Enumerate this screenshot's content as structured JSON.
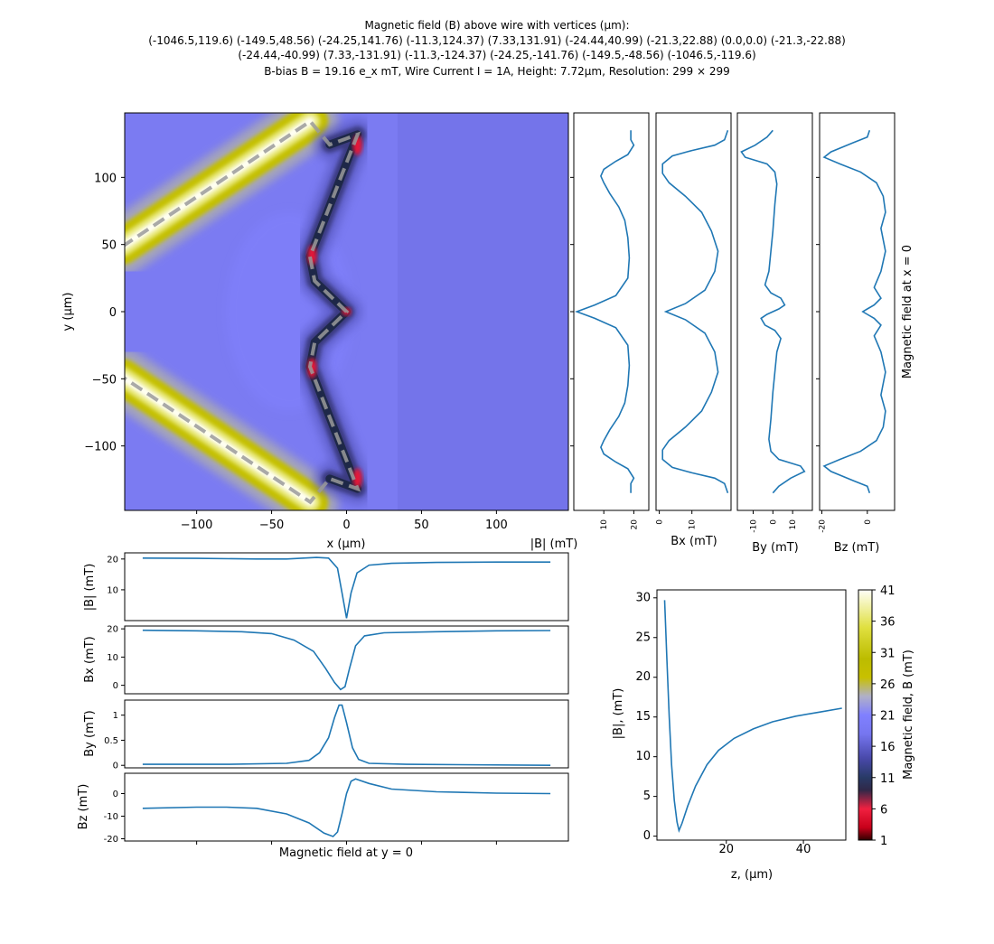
{
  "title": {
    "line1": "Magnetic field (B) above wire with vertices (μm):",
    "line2": "(-1046.5,119.6) (-149.5,48.56) (-24.25,141.76) (-11.3,124.37) (7.33,131.91) (-24.44,40.99) (-21.3,22.88) (0.0,0.0) (-21.3,-22.88)",
    "line3": "(-24.44,-40.99) (7.33,-131.91) (-11.3,-124.37) (-24.25,-141.76) (-149.5,-48.56) (-1046.5,-119.6)",
    "line4": "B-bias B = 19.16 e_x mT, Wire Current I = 1A, Height: 7.72μm, Resolution: 299 × 299"
  },
  "colors": {
    "line": "#1f77b4",
    "background_field": "#7b7bf2",
    "wire_dash": "#9a9a9a"
  },
  "chart_data": [
    {
      "id": "map",
      "type": "heatmap",
      "xlabel": "x (μm)",
      "ylabel": "y (μm)",
      "xlim": [
        -148,
        148
      ],
      "ylim": [
        -148,
        148
      ],
      "xticks": [
        -100,
        -50,
        0,
        50,
        100
      ],
      "yticks": [
        -100,
        -50,
        0,
        50,
        100
      ],
      "wire_path": [
        [
          -1046.5,
          119.6
        ],
        [
          -149.5,
          48.56
        ],
        [
          -24.25,
          141.76
        ],
        [
          -11.3,
          124.37
        ],
        [
          7.33,
          131.91
        ],
        [
          -24.44,
          40.99
        ],
        [
          -21.3,
          22.88
        ],
        [
          0,
          0
        ],
        [
          -21.3,
          -22.88
        ],
        [
          -24.44,
          -40.99
        ],
        [
          7.33,
          -131.91
        ],
        [
          -11.3,
          -124.37
        ],
        [
          -24.25,
          -141.76
        ],
        [
          -149.5,
          -48.56
        ],
        [
          -1046.5,
          -119.6
        ]
      ]
    },
    {
      "id": "vx_babs",
      "type": "line",
      "xlabel": "|B| (mT)",
      "xlim": [
        0,
        25
      ],
      "ylim": [
        -148,
        148
      ],
      "xticks": [
        10,
        20
      ],
      "points": [
        [
          19,
          135
        ],
        [
          19,
          128
        ],
        [
          20,
          124
        ],
        [
          18,
          117
        ],
        [
          14,
          112
        ],
        [
          10,
          106
        ],
        [
          9,
          101
        ],
        [
          10,
          96
        ],
        [
          12,
          88
        ],
        [
          15,
          78
        ],
        [
          17,
          68
        ],
        [
          18,
          55
        ],
        [
          18.5,
          40
        ],
        [
          18,
          25
        ],
        [
          14,
          12
        ],
        [
          7,
          5
        ],
        [
          1,
          0
        ],
        [
          7,
          -5
        ],
        [
          14,
          -12
        ],
        [
          18,
          -25
        ],
        [
          18.5,
          -40
        ],
        [
          18,
          -55
        ],
        [
          17,
          -68
        ],
        [
          15,
          -78
        ],
        [
          12,
          -88
        ],
        [
          10,
          -96
        ],
        [
          9,
          -101
        ],
        [
          10,
          -106
        ],
        [
          14,
          -112
        ],
        [
          18,
          -117
        ],
        [
          20,
          -124
        ],
        [
          19,
          -128
        ],
        [
          19,
          -135
        ]
      ]
    },
    {
      "id": "vx_bx",
      "type": "line",
      "xlabel": "Bx (mT)",
      "xlim": [
        -1,
        22
      ],
      "ylim": [
        -148,
        148
      ],
      "xticks": [
        0,
        10
      ],
      "points": [
        [
          21,
          135
        ],
        [
          20,
          128
        ],
        [
          17,
          124
        ],
        [
          10,
          120
        ],
        [
          4,
          116
        ],
        [
          1,
          110
        ],
        [
          1,
          103
        ],
        [
          3,
          96
        ],
        [
          8,
          86
        ],
        [
          13,
          74
        ],
        [
          16,
          60
        ],
        [
          18,
          45
        ],
        [
          17,
          30
        ],
        [
          14,
          16
        ],
        [
          8,
          6
        ],
        [
          2,
          0
        ],
        [
          8,
          -6
        ],
        [
          14,
          -16
        ],
        [
          17,
          -30
        ],
        [
          18,
          -45
        ],
        [
          16,
          -60
        ],
        [
          13,
          -74
        ],
        [
          8,
          -86
        ],
        [
          3,
          -96
        ],
        [
          1,
          -103
        ],
        [
          1,
          -110
        ],
        [
          4,
          -116
        ],
        [
          10,
          -120
        ],
        [
          17,
          -124
        ],
        [
          20,
          -128
        ],
        [
          21,
          -135
        ]
      ]
    },
    {
      "id": "vx_by",
      "type": "line",
      "xlabel": "By (mT)",
      "xlim": [
        -18,
        20
      ],
      "ylim": [
        -148,
        148
      ],
      "xticks": [
        -10,
        0,
        10
      ],
      "points": [
        [
          0,
          135
        ],
        [
          -3,
          130
        ],
        [
          -9,
          124
        ],
        [
          -16,
          119
        ],
        [
          -14,
          115
        ],
        [
          -3,
          110
        ],
        [
          1,
          104
        ],
        [
          2,
          95
        ],
        [
          1,
          80
        ],
        [
          0,
          60
        ],
        [
          -1,
          45
        ],
        [
          -2,
          30
        ],
        [
          -4,
          20
        ],
        [
          -1,
          14
        ],
        [
          4,
          10
        ],
        [
          6,
          5
        ],
        [
          3,
          2
        ],
        [
          0,
          0
        ],
        [
          -3,
          -2
        ],
        [
          -6,
          -5
        ],
        [
          -4,
          -10
        ],
        [
          1,
          -14
        ],
        [
          4,
          -20
        ],
        [
          2,
          -30
        ],
        [
          1,
          -45
        ],
        [
          0,
          -60
        ],
        [
          -1,
          -80
        ],
        [
          -2,
          -95
        ],
        [
          -1,
          -104
        ],
        [
          3,
          -110
        ],
        [
          14,
          -115
        ],
        [
          16,
          -119
        ],
        [
          9,
          -124
        ],
        [
          3,
          -130
        ],
        [
          0,
          -135
        ]
      ]
    },
    {
      "id": "vx_bz",
      "type": "line",
      "xlabel": "Bz (mT)",
      "xlim": [
        -21,
        12
      ],
      "ylim": [
        -148,
        148
      ],
      "xticks": [
        -20,
        0
      ],
      "points": [
        [
          1,
          135
        ],
        [
          0,
          130
        ],
        [
          -6,
          126
        ],
        [
          -16,
          119
        ],
        [
          -19,
          115
        ],
        [
          -12,
          110
        ],
        [
          -3,
          104
        ],
        [
          4,
          96
        ],
        [
          7,
          86
        ],
        [
          8,
          74
        ],
        [
          6,
          62
        ],
        [
          8,
          45
        ],
        [
          6,
          30
        ],
        [
          3,
          18
        ],
        [
          6,
          10
        ],
        [
          3,
          5
        ],
        [
          0,
          2
        ],
        [
          -2,
          0
        ],
        [
          0,
          -2
        ],
        [
          3,
          -5
        ],
        [
          6,
          -10
        ],
        [
          3,
          -18
        ],
        [
          6,
          -30
        ],
        [
          8,
          -45
        ],
        [
          6,
          -62
        ],
        [
          8,
          -74
        ],
        [
          7,
          -86
        ],
        [
          4,
          -96
        ],
        [
          -3,
          -104
        ],
        [
          -12,
          -110
        ],
        [
          -19,
          -115
        ],
        [
          -16,
          -119
        ],
        [
          -6,
          -126
        ],
        [
          0,
          -130
        ],
        [
          1,
          -135
        ]
      ]
    },
    {
      "id": "h_babs",
      "type": "line",
      "ylabel": "|B| (mT)",
      "xlim": [
        -148,
        148
      ],
      "ylim": [
        0,
        22
      ],
      "yticks": [
        10,
        20
      ],
      "points": [
        [
          -136,
          20.3
        ],
        [
          -100,
          20.2
        ],
        [
          -60,
          20
        ],
        [
          -40,
          20
        ],
        [
          -20,
          20.5
        ],
        [
          -12,
          20.3
        ],
        [
          -6,
          17
        ],
        [
          -3,
          9
        ],
        [
          0,
          0.8
        ],
        [
          3,
          9
        ],
        [
          7,
          15.5
        ],
        [
          15,
          18
        ],
        [
          30,
          18.6
        ],
        [
          60,
          18.9
        ],
        [
          100,
          19
        ],
        [
          136,
          19
        ]
      ]
    },
    {
      "id": "h_bx",
      "type": "line",
      "ylabel": "Bx (mT)",
      "xlim": [
        -148,
        148
      ],
      "ylim": [
        -3,
        21
      ],
      "yticks": [
        0,
        10,
        20
      ],
      "points": [
        [
          -136,
          19.5
        ],
        [
          -100,
          19.3
        ],
        [
          -70,
          19
        ],
        [
          -50,
          18.3
        ],
        [
          -35,
          16
        ],
        [
          -22,
          12
        ],
        [
          -14,
          6
        ],
        [
          -8,
          1
        ],
        [
          -4,
          -1.5
        ],
        [
          -1,
          -0.5
        ],
        [
          2,
          6
        ],
        [
          6,
          14
        ],
        [
          12,
          17.5
        ],
        [
          25,
          18.6
        ],
        [
          60,
          19
        ],
        [
          100,
          19.3
        ],
        [
          136,
          19.4
        ]
      ]
    },
    {
      "id": "h_by",
      "type": "line",
      "ylabel": "By (mT)",
      "xlim": [
        -148,
        148
      ],
      "ylim": [
        -0.05,
        1.3
      ],
      "yticks": [
        0,
        0.5,
        1.0
      ],
      "points": [
        [
          -136,
          0.02
        ],
        [
          -80,
          0.02
        ],
        [
          -40,
          0.04
        ],
        [
          -25,
          0.1
        ],
        [
          -18,
          0.25
        ],
        [
          -12,
          0.55
        ],
        [
          -8,
          0.95
        ],
        [
          -5,
          1.2
        ],
        [
          -3,
          1.2
        ],
        [
          0,
          0.85
        ],
        [
          4,
          0.35
        ],
        [
          8,
          0.12
        ],
        [
          15,
          0.04
        ],
        [
          40,
          0.02
        ],
        [
          136,
          0
        ]
      ]
    },
    {
      "id": "h_bz",
      "type": "line",
      "ylabel": "Bz (mT)",
      "xlim": [
        -148,
        148
      ],
      "ylim": [
        -21,
        9
      ],
      "yticks": [
        -20,
        -10,
        0
      ],
      "points": [
        [
          -136,
          -6.5
        ],
        [
          -100,
          -6
        ],
        [
          -80,
          -6
        ],
        [
          -60,
          -6.5
        ],
        [
          -40,
          -9
        ],
        [
          -25,
          -13
        ],
        [
          -15,
          -17.5
        ],
        [
          -9,
          -19
        ],
        [
          -6,
          -17
        ],
        [
          -3,
          -9
        ],
        [
          0,
          0
        ],
        [
          3,
          5.5
        ],
        [
          6,
          6.5
        ],
        [
          15,
          4.5
        ],
        [
          30,
          2
        ],
        [
          60,
          0.8
        ],
        [
          100,
          0.2
        ],
        [
          136,
          0
        ]
      ]
    },
    {
      "id": "zcurve",
      "type": "line",
      "xlabel": "z, (μm)",
      "ylabel": "|B|, (mT)",
      "xlim": [
        2,
        51
      ],
      "ylim": [
        -0.5,
        31
      ],
      "xticks": [
        20,
        40
      ],
      "yticks": [
        0,
        5,
        10,
        15,
        20,
        25,
        30
      ],
      "points": [
        [
          4,
          29.7
        ],
        [
          4.6,
          22
        ],
        [
          5.2,
          15
        ],
        [
          5.8,
          9
        ],
        [
          6.5,
          4.5
        ],
        [
          7.2,
          1.8
        ],
        [
          7.72,
          0.7
        ],
        [
          8.5,
          1.6
        ],
        [
          10,
          3.8
        ],
        [
          12,
          6.3
        ],
        [
          15,
          9
        ],
        [
          18,
          10.8
        ],
        [
          22,
          12.3
        ],
        [
          27,
          13.5
        ],
        [
          32,
          14.4
        ],
        [
          38,
          15.1
        ],
        [
          44,
          15.6
        ],
        [
          50,
          16.1
        ]
      ]
    }
  ],
  "xy_footer": "Magnetic field at y = 0",
  "x0_side_label": "Magnetic field at x = 0",
  "colorbar": {
    "label": "Magnetic field, B (mT)",
    "ticks": [
      1,
      6,
      11,
      16,
      21,
      26,
      31,
      36,
      41
    ],
    "range": [
      1,
      41
    ],
    "stops": [
      {
        "v": 1,
        "c": "#300000"
      },
      {
        "v": 3,
        "c": "#c8001a"
      },
      {
        "v": 6,
        "c": "#f02040"
      },
      {
        "v": 9,
        "c": "#302848"
      },
      {
        "v": 11,
        "c": "#283a66"
      },
      {
        "v": 14,
        "c": "#4848a8"
      },
      {
        "v": 18,
        "c": "#7676f0"
      },
      {
        "v": 21,
        "c": "#8080ff"
      },
      {
        "v": 24,
        "c": "#b0b0c8"
      },
      {
        "v": 27,
        "c": "#c8c000"
      },
      {
        "v": 30,
        "c": "#bcbc00"
      },
      {
        "v": 35,
        "c": "#e0e040"
      },
      {
        "v": 41,
        "c": "#fffff8"
      }
    ]
  }
}
